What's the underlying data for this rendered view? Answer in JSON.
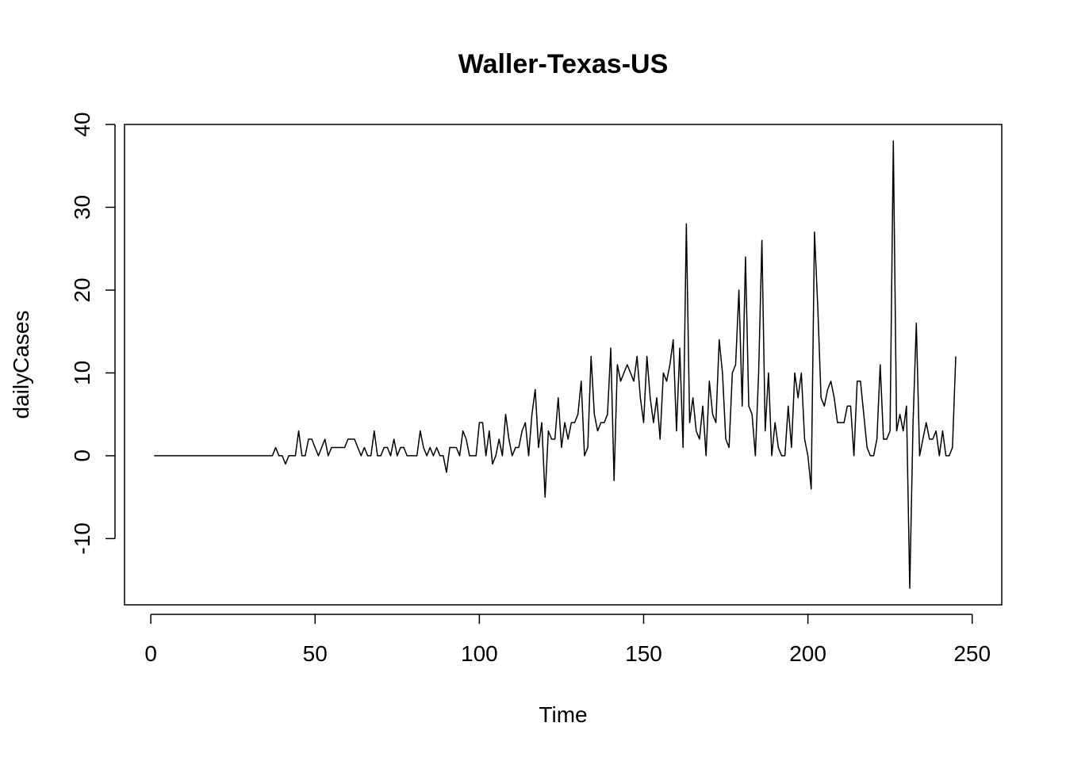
{
  "chart_data": {
    "type": "line",
    "title": "Waller-Texas-US",
    "xlabel": "Time",
    "ylabel": "dailyCases",
    "xlim": [
      -8,
      259
    ],
    "ylim": [
      -18,
      40
    ],
    "xticks": [
      0,
      50,
      100,
      150,
      200,
      250
    ],
    "yticks": [
      -10,
      0,
      10,
      20,
      30,
      40
    ],
    "grid": false,
    "line_color": "#000000",
    "x_start": 1,
    "values": [
      0,
      0,
      0,
      0,
      0,
      0,
      0,
      0,
      0,
      0,
      0,
      0,
      0,
      0,
      0,
      0,
      0,
      0,
      0,
      0,
      0,
      0,
      0,
      0,
      0,
      0,
      0,
      0,
      0,
      0,
      0,
      0,
      0,
      0,
      0,
      0,
      0,
      1,
      0,
      0,
      -1,
      0,
      0,
      0,
      3,
      0,
      0,
      2,
      2,
      1,
      0,
      1,
      2,
      0,
      1,
      1,
      1,
      1,
      1,
      2,
      2,
      2,
      1,
      0,
      1,
      0,
      0,
      3,
      0,
      0,
      1,
      1,
      0,
      2,
      0,
      1,
      1,
      0,
      0,
      0,
      0,
      3,
      1,
      0,
      1,
      0,
      1,
      0,
      0,
      -2,
      1,
      1,
      1,
      0,
      3,
      2,
      0,
      0,
      0,
      4,
      4,
      0,
      3,
      -1,
      0,
      2,
      0,
      5,
      2,
      0,
      1,
      1,
      3,
      4,
      0,
      5,
      8,
      1,
      4,
      -5,
      3,
      2,
      2,
      7,
      1,
      4,
      2,
      4,
      4,
      5,
      9,
      0,
      1,
      12,
      5,
      3,
      4,
      4,
      5,
      13,
      -3,
      11,
      9,
      10,
      11,
      10,
      9,
      12,
      7,
      4,
      12,
      7,
      4,
      7,
      2,
      10,
      9,
      11,
      14,
      3,
      13,
      1,
      28,
      4,
      7,
      3,
      2,
      6,
      0,
      9,
      5,
      4,
      14,
      10,
      2,
      1,
      10,
      11,
      20,
      6,
      24,
      6,
      5,
      0,
      10,
      26,
      3,
      10,
      0,
      4,
      1,
      0,
      0,
      6,
      1,
      10,
      7,
      10,
      2,
      0,
      -4,
      27,
      18,
      7,
      6,
      8,
      9,
      7,
      4,
      4,
      4,
      6,
      6,
      0,
      9,
      9,
      5,
      1,
      0,
      0,
      2,
      11,
      2,
      2,
      3,
      38,
      3,
      5,
      3,
      6,
      -16,
      4,
      16,
      0,
      2,
      4,
      2,
      2,
      3,
      0,
      3,
      0,
      0,
      1,
      12
    ]
  }
}
